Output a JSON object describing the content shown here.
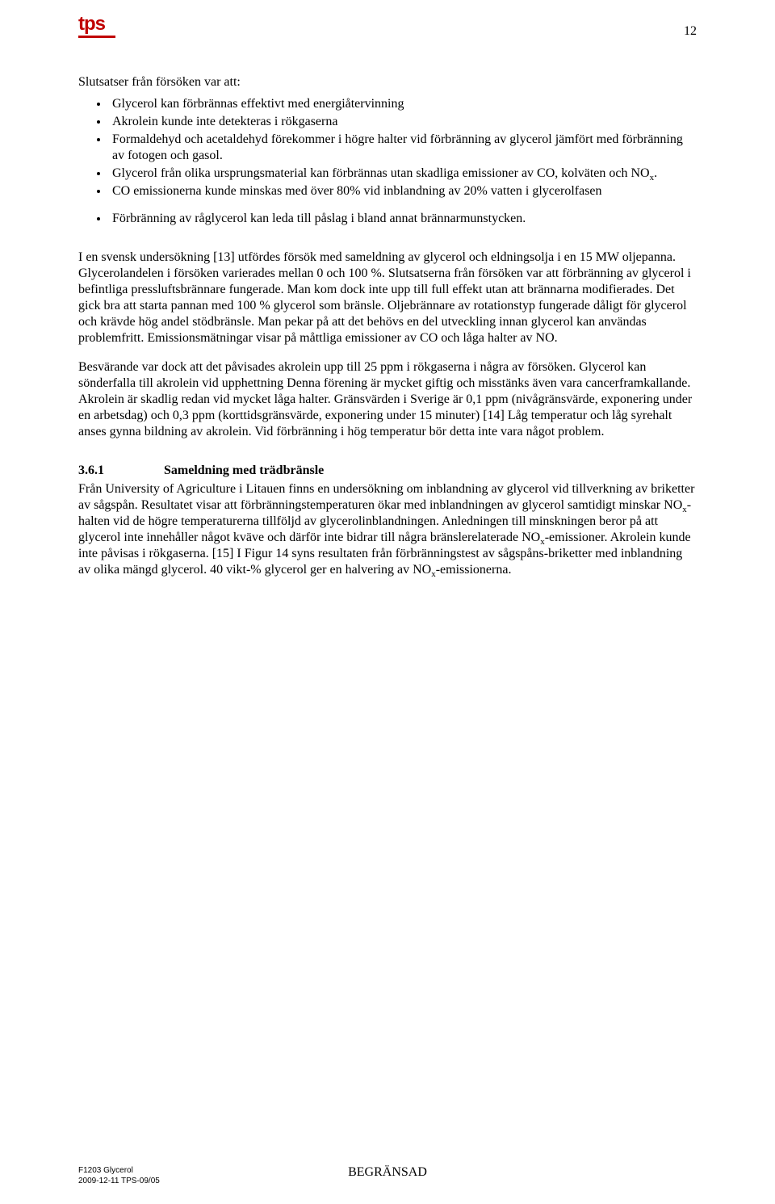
{
  "page_number": "12",
  "logo": {
    "text": "tps",
    "color": "#c00000"
  },
  "intro": "Slutsatser från försöken var att:",
  "bullets": [
    "Glycerol kan förbrännas effektivt med energiåtervinning",
    "Akrolein kunde inte detekteras i rökgaserna",
    "Formaldehyd och acetaldehyd förekommer i högre halter vid förbränning av glycerol jämfört med förbränning av fotogen och gasol.",
    "Glycerol från olika ursprungsmaterial kan förbrännas utan skadliga emissioner av CO, kolväten och NOx.",
    "CO emissionerna kunde minskas med över 80% vid inblandning av 20% vatten i glycerolfasen",
    "Förbränning av råglycerol kan leda till påslag i bland annat brännarmunstycken."
  ],
  "para1": "I en svensk undersökning [13] utfördes försök med sameldning av glycerol och eldningsolja i en 15 MW oljepanna. Glycerolandelen i försöken varierades mellan 0 och 100 %. Slutsatserna från försöken var att förbränning av glycerol i befintliga pressluftsbrännare fungerade. Man kom dock inte upp till full effekt utan att brännarna modifierades. Det gick bra att starta pannan med 100 % glycerol som bränsle. Oljebrännare av rotationstyp fungerade dåligt för glycerol och krävde hög andel stödbränsle. Man pekar på att det behövs en del utveckling innan glycerol kan användas problemfritt. Emissionsmätningar visar på måttliga emissioner av CO och låga halter av NO.",
  "para2": "Besvärande var dock att det påvisades akrolein upp till 25 ppm i rökgaserna i några av försöken. Glycerol kan sönderfalla till akrolein vid upphettning Denna förening är mycket giftig och misstänks även vara cancerframkallande. Akrolein är skadlig redan vid mycket låga halter. Gränsvärden i Sverige är 0,1 ppm (nivågränsvärde, exponering under en arbetsdag) och 0,3 ppm (korttidsgränsvärde, exponering under 15 minuter) [14] Låg temperatur och låg syrehalt anses gynna bildning av akrolein. Vid förbränning i hög temperatur bör detta inte vara något problem.",
  "section": {
    "num": "3.6.1",
    "title": "Sameldning med trädbränsle"
  },
  "para3": "Från University of Agriculture i Litauen finns en undersökning om inblandning av glycerol vid tillverkning av briketter av sågspån. Resultatet visar att förbränningstemperaturen ökar med inblandningen av glycerol samtidigt minskar NOx-halten vid de högre temperaturerna tillföljd av glycerolinblandningen. Anledningen till minskningen beror på att glycerol inte innehåller något kväve och därför inte bidrar till några bränslerelaterade NOx-emissioner. Akrolein kunde inte påvisas i rökgaserna. [15] I Figur 14 syns resultaten från förbränningstest av sågspåns-briketter med inblandning av olika mängd glycerol. 40 vikt-% glycerol ger en halvering av NOx-emissionerna.",
  "footer": {
    "line1": "F1203 Glycerol",
    "line2": "2009-12-11 TPS-09/05",
    "center": "BEGRÄNSAD"
  },
  "colors": {
    "text": "#000000",
    "background": "#ffffff",
    "logo": "#c00000"
  },
  "typography": {
    "body_fontsize_pt": 12,
    "body_family": "Times New Roman",
    "footer_fontsize_pt": 7,
    "footer_family": "Arial"
  }
}
